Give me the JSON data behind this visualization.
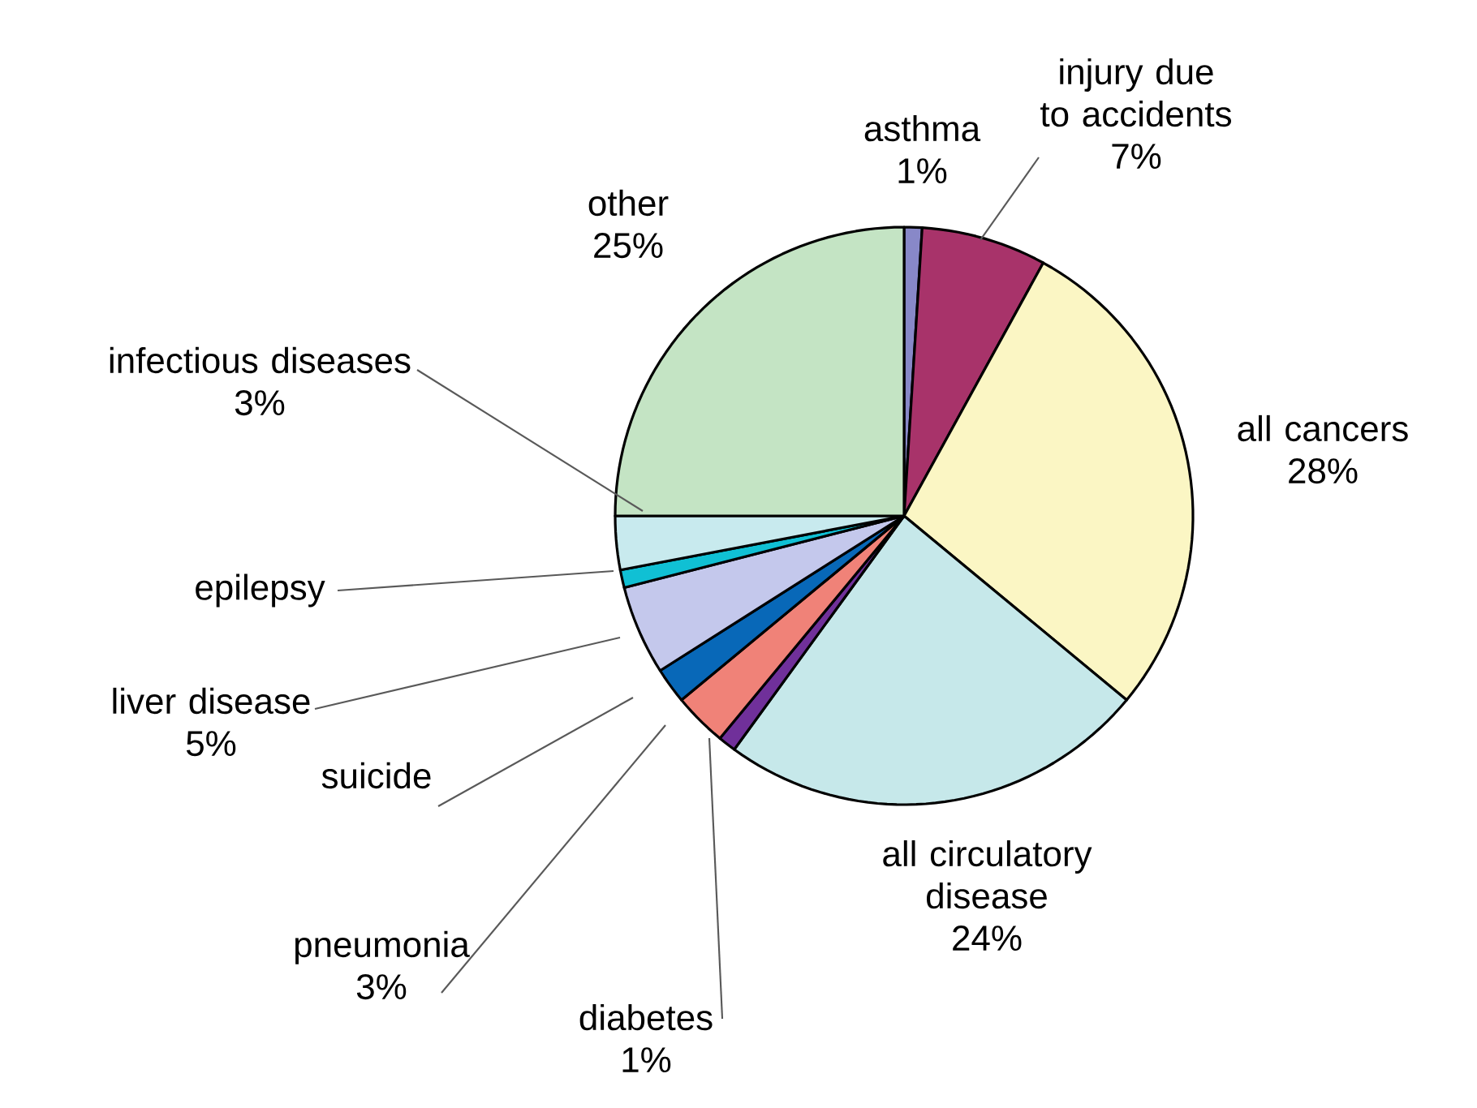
{
  "chart_data": {
    "type": "pie",
    "categories": [
      "asthma",
      "injury due to accidents",
      "all cancers",
      "all circulatory disease",
      "diabetes",
      "pneumonia",
      "suicide",
      "liver disease",
      "epilepsy",
      "infectious diseases",
      "other"
    ],
    "values": [
      1,
      7,
      28,
      24,
      1,
      3,
      2,
      5,
      1,
      3,
      25
    ],
    "value_labels": [
      "1%",
      "7%",
      "28%",
      "24%",
      "1%",
      "3%",
      null,
      "5%",
      null,
      "3%",
      "25%"
    ],
    "colors": [
      "#8888c8",
      "#a8336a",
      "#fbf6c4",
      "#c6e8ea",
      "#70309a",
      "#f08278",
      "#0868b8",
      "#c4c8ec",
      "#10c0d4",
      "#c8eaee",
      "#c4e4c4"
    ]
  }
}
